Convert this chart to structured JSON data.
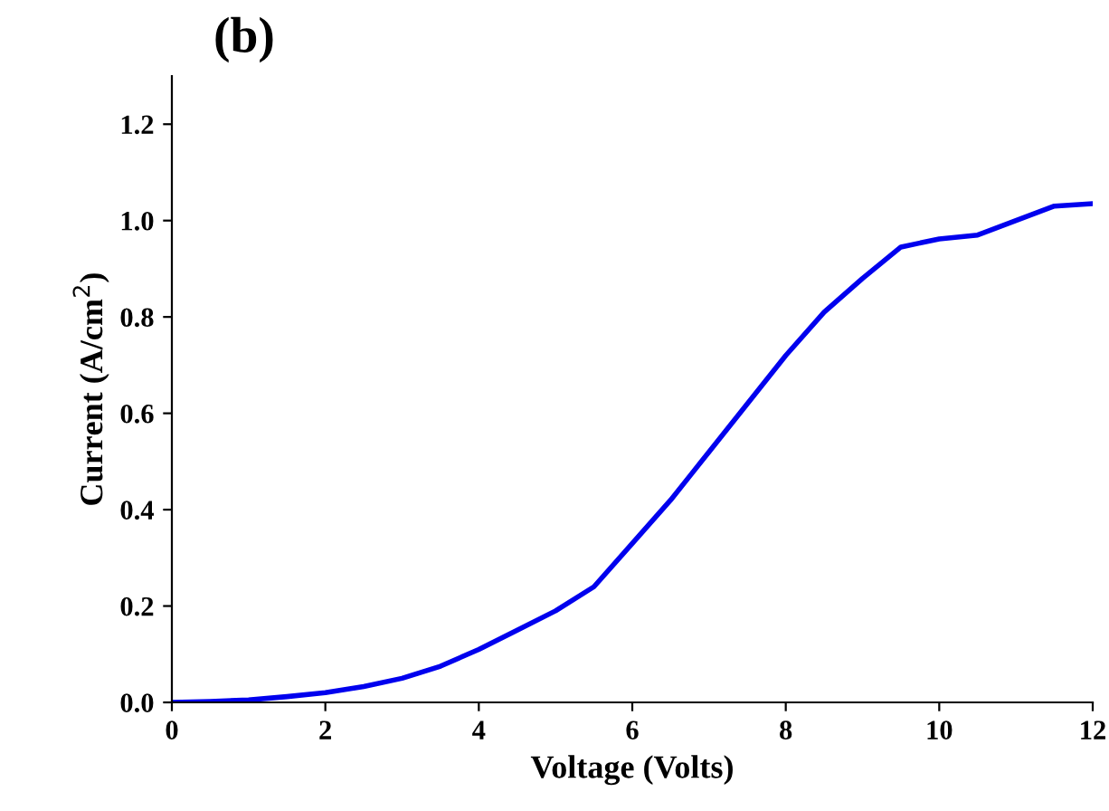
{
  "chart_data": {
    "type": "line",
    "title": "(b)",
    "xlabel": "Voltage (Volts)",
    "ylabel": "Current (A/cm$^{2}$)",
    "x": [
      0,
      0.5,
      1,
      1.5,
      2,
      2.5,
      3,
      3.5,
      4,
      4.5,
      5,
      5.5,
      6,
      6.5,
      7,
      7.5,
      8,
      8.5,
      9,
      9.5,
      10,
      10.5,
      11,
      11.5,
      12
    ],
    "series": [
      {
        "color": "#0000ee",
        "values": [
          0,
          0.002,
          0.005,
          0.012,
          0.02,
          0.033,
          0.05,
          0.075,
          0.11,
          0.15,
          0.19,
          0.24,
          0.33,
          0.42,
          0.52,
          0.62,
          0.72,
          0.81,
          0.88,
          0.945,
          0.962,
          0.97,
          1.0,
          1.03,
          1.035
        ]
      }
    ],
    "xlim": [
      0,
      12
    ],
    "ylim": [
      0,
      1.3
    ],
    "xticks": [
      0,
      2,
      4,
      6,
      8,
      10,
      12
    ],
    "yticks": [
      {
        "value": 0,
        "label": "0.0"
      },
      {
        "value": 0.2,
        "label": "0.2"
      },
      {
        "value": 0.4,
        "label": "0.4"
      },
      {
        "value": 0.6,
        "label": "0.6"
      },
      {
        "value": 0.8,
        "label": "0.8"
      },
      {
        "value": 1.0,
        "label": "1.0"
      },
      {
        "value": 1.2,
        "label": "1.2"
      }
    ],
    "grid": false,
    "legend": false,
    "marker": "none",
    "line_style": "solid"
  }
}
